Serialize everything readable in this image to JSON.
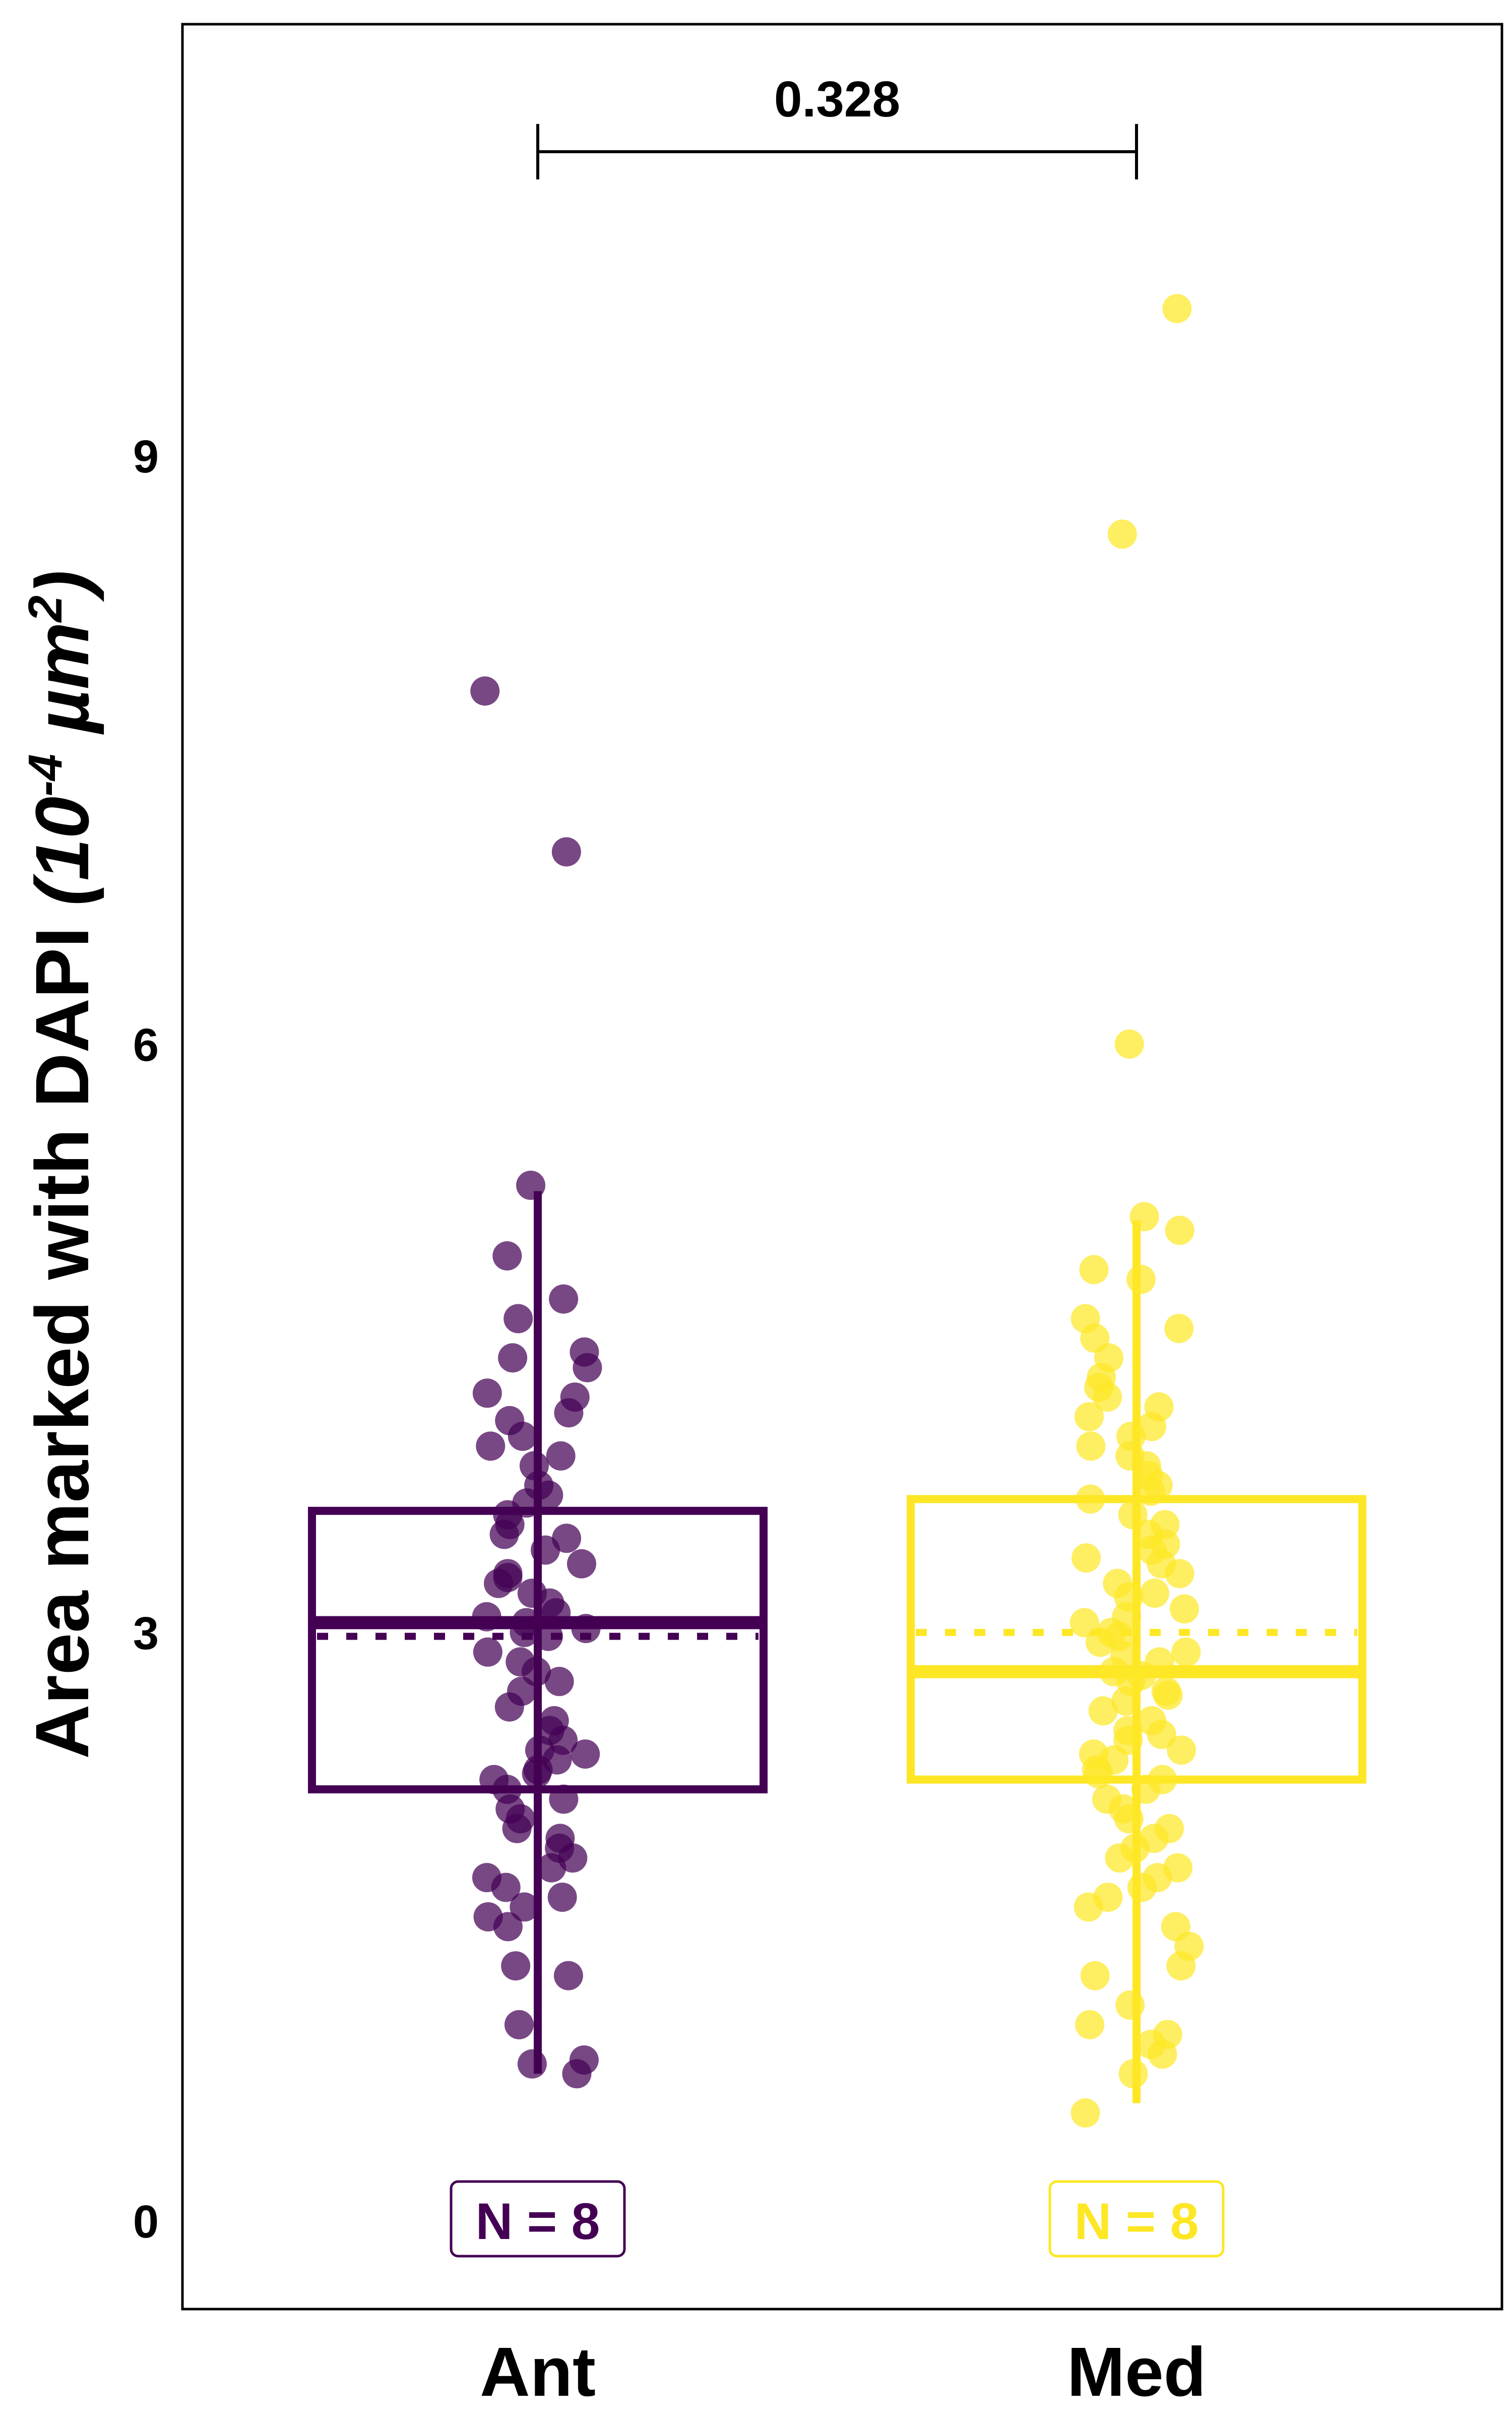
{
  "chart_data": {
    "type": "box-jitter",
    "ylabel_main": "Area marked with DAPI ",
    "ylabel_unit_open": "(10",
    "ylabel_exp1": "-4",
    "ylabel_unit_mid": " µm",
    "ylabel_exp2": "2",
    "ylabel_unit_close": ")",
    "ylim": [
      -0.45,
      11.2
    ],
    "yticks": [
      0,
      3,
      6,
      9
    ],
    "ytick_labels": [
      "0",
      "3",
      "6",
      "9"
    ],
    "categories": [
      "Ant",
      "Med"
    ],
    "significance": {
      "from": "Ant",
      "to": "Med",
      "label": "0.328",
      "y": 10.55
    },
    "groups": [
      {
        "name": "Ant",
        "color": "#440154",
        "n_label": "N = 8",
        "box": {
          "q1": 2.2,
          "median": 3.05,
          "mean": 2.98,
          "q3": 3.62,
          "whisker_low": 0.75,
          "whisker_high": 5.25
        },
        "points": [
          7.8,
          6.98,
          5.28,
          4.92,
          4.7,
          4.6,
          4.43,
          4.4,
          4.35,
          4.22,
          4.2,
          4.12,
          4.08,
          4.0,
          3.95,
          3.9,
          3.85,
          3.75,
          3.7,
          3.66,
          3.6,
          3.55,
          3.5,
          3.48,
          3.42,
          3.35,
          3.3,
          3.28,
          3.25,
          3.2,
          3.15,
          3.1,
          3.08,
          3.05,
          3.02,
          3.0,
          2.98,
          2.9,
          2.85,
          2.8,
          2.75,
          2.7,
          2.62,
          2.55,
          2.5,
          2.45,
          2.4,
          2.38,
          2.35,
          2.3,
          2.28,
          2.25,
          2.2,
          2.15,
          2.1,
          2.05,
          2.0,
          1.95,
          1.9,
          1.85,
          1.8,
          1.75,
          1.7,
          1.65,
          1.6,
          1.55,
          1.5,
          1.3,
          1.25,
          1.0,
          0.82,
          0.8,
          0.75
        ]
      },
      {
        "name": "Med",
        "color": "#fde725",
        "n_label": "N = 8",
        "box": {
          "q1": 2.25,
          "median": 2.8,
          "mean": 3.0,
          "q3": 3.68,
          "whisker_low": 0.6,
          "whisker_high": 5.1
        },
        "points": [
          9.75,
          8.6,
          6.0,
          5.12,
          5.05,
          4.85,
          4.8,
          4.6,
          4.55,
          4.5,
          4.4,
          4.3,
          4.25,
          4.2,
          4.15,
          4.1,
          4.05,
          4.0,
          3.95,
          3.9,
          3.85,
          3.8,
          3.75,
          3.72,
          3.68,
          3.6,
          3.55,
          3.5,
          3.45,
          3.42,
          3.38,
          3.35,
          3.3,
          3.25,
          3.2,
          3.18,
          3.12,
          3.08,
          3.05,
          3.0,
          2.98,
          2.95,
          2.9,
          2.88,
          2.85,
          2.8,
          2.78,
          2.75,
          2.7,
          2.68,
          2.65,
          2.6,
          2.55,
          2.5,
          2.48,
          2.45,
          2.4,
          2.38,
          2.35,
          2.3,
          2.28,
          2.25,
          2.2,
          2.15,
          2.1,
          2.05,
          2.0,
          1.95,
          1.9,
          1.85,
          1.8,
          1.75,
          1.7,
          1.65,
          1.6,
          1.5,
          1.4,
          1.3,
          1.25,
          1.1,
          1.0,
          0.95,
          0.9,
          0.85,
          0.75,
          0.55
        ]
      }
    ]
  }
}
